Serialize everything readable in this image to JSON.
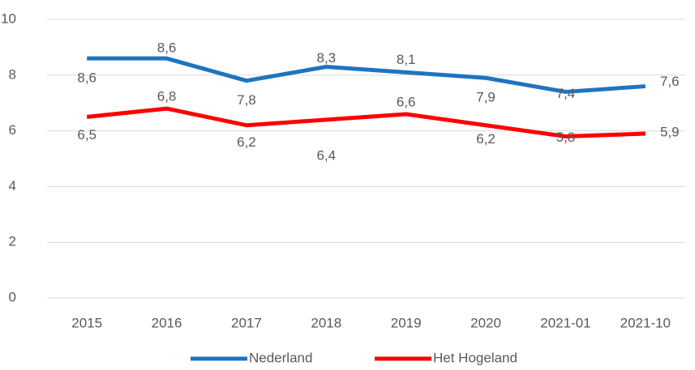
{
  "chart_data": {
    "type": "line",
    "categories": [
      "2015",
      "2016",
      "2017",
      "2018",
      "2019",
      "2020",
      "2021-01",
      "2021-10"
    ],
    "series": [
      {
        "name": "Nederland",
        "color": "#1f74c0",
        "values": [
          8.6,
          8.6,
          7.8,
          8.3,
          8.1,
          7.9,
          7.4,
          7.6
        ],
        "value_labels": [
          "8,6",
          "8,6",
          "7,8",
          "8,3",
          "8,1",
          "7,9",
          "7,4",
          "7,6"
        ]
      },
      {
        "name": "Het Hogeland",
        "color": "#ff0000",
        "values": [
          6.5,
          6.8,
          6.2,
          6.4,
          6.6,
          6.2,
          5.8,
          5.9
        ],
        "value_labels": [
          "6,5",
          "6,8",
          "6,2",
          "6,4",
          "6,6",
          "6,2",
          "5,8",
          "5,9"
        ]
      }
    ],
    "ylim": [
      0,
      10
    ],
    "yticks": [
      0,
      2,
      4,
      6,
      8,
      10
    ],
    "grid": true,
    "legend": "bottom"
  }
}
